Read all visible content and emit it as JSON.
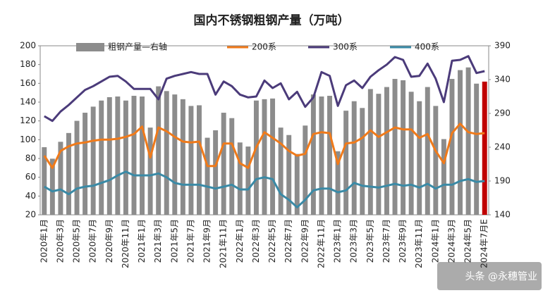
{
  "chart_data": {
    "type": "bar_line",
    "title": "国内不锈钢粗钢产量（万吨）",
    "categories": [
      "2020年1月",
      null,
      "2020年3月",
      null,
      "2020年5月",
      null,
      "2020年7月",
      null,
      "2020年9月",
      null,
      "2020年11月",
      null,
      "2021年1月",
      null,
      "2021年3月",
      null,
      "2021年5月",
      null,
      "2021年7月",
      null,
      "2021年9月",
      null,
      "2021年11月",
      null,
      "2022年1月",
      null,
      "2022年3月",
      null,
      "2022年5月",
      null,
      "2022年7月",
      null,
      "2022年9月",
      null,
      "2022年11月",
      null,
      "2023年1月",
      null,
      "2023年3月",
      null,
      "2023年5月",
      null,
      "2023年7月",
      null,
      "2023年9月",
      null,
      "2023年11月",
      null,
      "2024年1月",
      null,
      "2024年3月",
      null,
      "2024年5月",
      null,
      "2024年7月E"
    ],
    "series": [
      {
        "name": "粗钢产量—右轴",
        "type": "bar",
        "axis": "y2",
        "color": "#8c8c8c",
        "last_color": "#c00000",
        "values": [
          240,
          223,
          248,
          261,
          279,
          291,
          300,
          309,
          314,
          315,
          309,
          316,
          315,
          269,
          330,
          323,
          318,
          311,
          301,
          302,
          254,
          265,
          291,
          283,
          247,
          241,
          309,
          311,
          312,
          269,
          258,
          230,
          272,
          318,
          315,
          316,
          234,
          294,
          308,
          298,
          326,
          319,
          329,
          341,
          339,
          322,
          308,
          329,
          301,
          252,
          341,
          354,
          358,
          334,
          337
        ]
      },
      {
        "name": "200系",
        "type": "line",
        "color": "#f07a1a",
        "values": [
          83,
          70,
          88,
          93,
          96,
          97,
          99,
          100,
          100,
          101,
          103,
          106,
          114,
          81,
          113,
          109,
          103,
          98,
          97,
          98,
          72,
          72,
          96,
          96,
          75,
          70,
          92,
          108,
          102,
          96,
          88,
          83,
          85,
          106,
          108,
          107,
          74,
          96,
          97,
          102,
          110,
          103,
          108,
          113,
          111,
          111,
          102,
          106,
          88,
          75,
          107,
          117,
          108,
          106,
          107
        ]
      },
      {
        "name": "300系",
        "type": "line",
        "color": "#4b3b7a",
        "values": [
          125,
          120,
          130,
          137,
          145,
          153,
          157,
          162,
          167,
          168,
          162,
          154,
          154,
          154,
          143,
          165,
          168,
          170,
          172,
          170,
          170,
          148,
          162,
          157,
          148,
          145,
          146,
          163,
          155,
          160,
          143,
          151,
          135,
          145,
          172,
          168,
          136,
          158,
          163,
          155,
          167,
          174,
          180,
          188,
          185,
          167,
          168,
          181,
          165,
          140,
          184,
          185,
          189,
          171,
          173
        ]
      },
      {
        "name": "400系",
        "type": "line",
        "color": "#3a8aa6",
        "values": [
          50,
          45,
          47,
          42,
          48,
          50,
          51,
          54,
          57,
          62,
          66,
          62,
          62,
          62,
          64,
          60,
          54,
          52,
          52,
          52,
          50,
          48,
          50,
          52,
          47,
          47,
          58,
          60,
          58,
          42,
          36,
          28,
          36,
          46,
          48,
          48,
          44,
          46,
          54,
          51,
          50,
          49,
          51,
          53,
          51,
          52,
          49,
          53,
          48,
          52,
          52,
          56,
          58,
          55,
          56
        ]
      }
    ],
    "ylim": [
      20,
      200
    ],
    "yticks": [
      20,
      40,
      60,
      80,
      100,
      120,
      140,
      160,
      180,
      200
    ],
    "y2lim": [
      140,
      390
    ],
    "y2ticks": [
      140,
      190,
      240,
      290,
      340,
      390
    ],
    "grid": false,
    "legend": "top",
    "watermark": "头条 @永穗管业"
  }
}
